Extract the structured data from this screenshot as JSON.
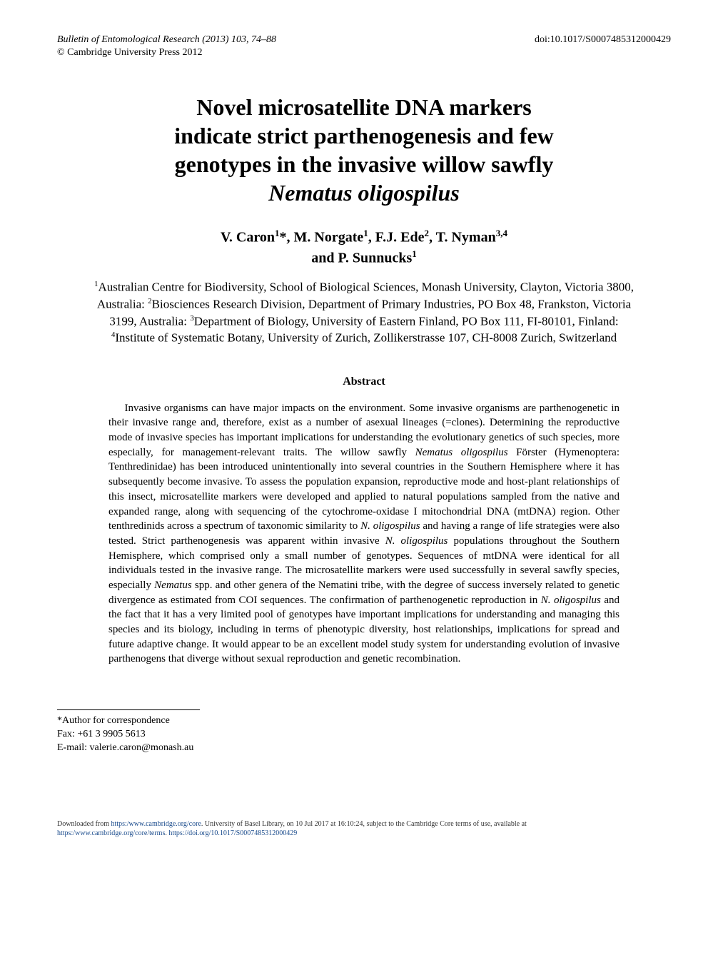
{
  "header": {
    "journal_line": "Bulletin of Entomological Research (2013) 103, 74–88",
    "doi": "doi:10.1017/S0007485312000429",
    "copyright": "© Cambridge University Press 2012"
  },
  "title": {
    "line1": "Novel microsatellite DNA markers",
    "line2": "indicate strict parthenogenesis and few",
    "line3": "genotypes in the invasive willow sawfly",
    "species": "Nematus oligospilus"
  },
  "authors": {
    "line1_pre": "V. Caron",
    "a1_sup": "1",
    "a1_star": "*",
    "sep1": ", M. Norgate",
    "a2_sup": "1",
    "sep2": ", F.J. Ede",
    "a3_sup": "2",
    "sep3": ", T. Nyman",
    "a4_sup": "3,4",
    "line2_pre": "and P. Sunnucks",
    "a5_sup": "1"
  },
  "affiliations": {
    "s1": "1",
    "t1": "Australian Centre for Biodiversity, School of Biological Sciences, Monash University, Clayton, Victoria 3800, Australia: ",
    "s2": "2",
    "t2": "Biosciences Research Division, Department of Primary Industries, PO Box 48, Frankston, Victoria 3199, Australia: ",
    "s3": "3",
    "t3": "Department of Biology, University of Eastern Finland, PO Box 111, FI-80101, Finland: ",
    "s4": "4",
    "t4": "Institute of Systematic Botany, University of Zurich, Zollikerstrasse 107, CH-8008 Zurich, Switzerland"
  },
  "abstract": {
    "heading": "Abstract",
    "p1": "Invasive organisms can have major impacts on the environment. Some invasive organisms are parthenogenetic in their invasive range and, therefore, exist as a number of asexual lineages (=clones). Determining the reproductive mode of invasive species has important implications for understanding the evolutionary genetics of such species, more especially, for management-relevant traits. The willow sawfly ",
    "sp1": "Nematus oligospilus",
    "p2": " Förster (Hymenoptera: Tenthredinidae) has been introduced unintentionally into several countries in the Southern Hemisphere where it has subsequently become invasive. To assess the population expansion, reproductive mode and host-plant relationships of this insect, microsatellite markers were developed and applied to natural populations sampled from the native and expanded range, along with sequencing of the cytochrome-oxidase I mitochondrial DNA (mtDNA) region. Other tenthredinids across a spectrum of taxonomic similarity to ",
    "sp2": "N. oligospilus",
    "p3": " and having a range of life strategies were also tested. Strict parthenogenesis was apparent within invasive ",
    "sp3": "N. oligospilus",
    "p4": " populations throughout the Southern Hemisphere, which comprised only a small number of genotypes. Sequences of mtDNA were identical for all individuals tested in the invasive range. The microsatellite markers were used successfully in several sawfly species, especially ",
    "sp4": "Nematus",
    "p5": " spp. and other genera of the Nematini tribe, with the degree of success inversely related to genetic divergence as estimated from COI sequences. The confirmation of parthenogenetic reproduction in ",
    "sp5": "N. oligospilus",
    "p6": " and the fact that it has a very limited pool of genotypes have important implications for understanding and managing this species and its biology, including in terms of phenotypic diversity, host relationships, implications for spread and future adaptive change. It would appear to be an excellent model study system for understanding evolution of invasive parthenogens that diverge without sexual reproduction and genetic recombination."
  },
  "correspondence": {
    "l1": "*Author for correspondence",
    "l2": "Fax: +61 3 9905 5613",
    "l3": "E-mail: valerie.caron@monash.au"
  },
  "footer": {
    "t1": "Downloaded from ",
    "link1": "https:/www.cambridge.org/core",
    "t2": ". University of Basel Library, on 10 Jul 2017 at 16:10:24, subject to the Cambridge Core terms of use, available at",
    "link2": "https:/www.cambridge.org/core/terms",
    "t3": ". ",
    "link3": "https://doi.org/10.1017/S0007485312000429"
  }
}
